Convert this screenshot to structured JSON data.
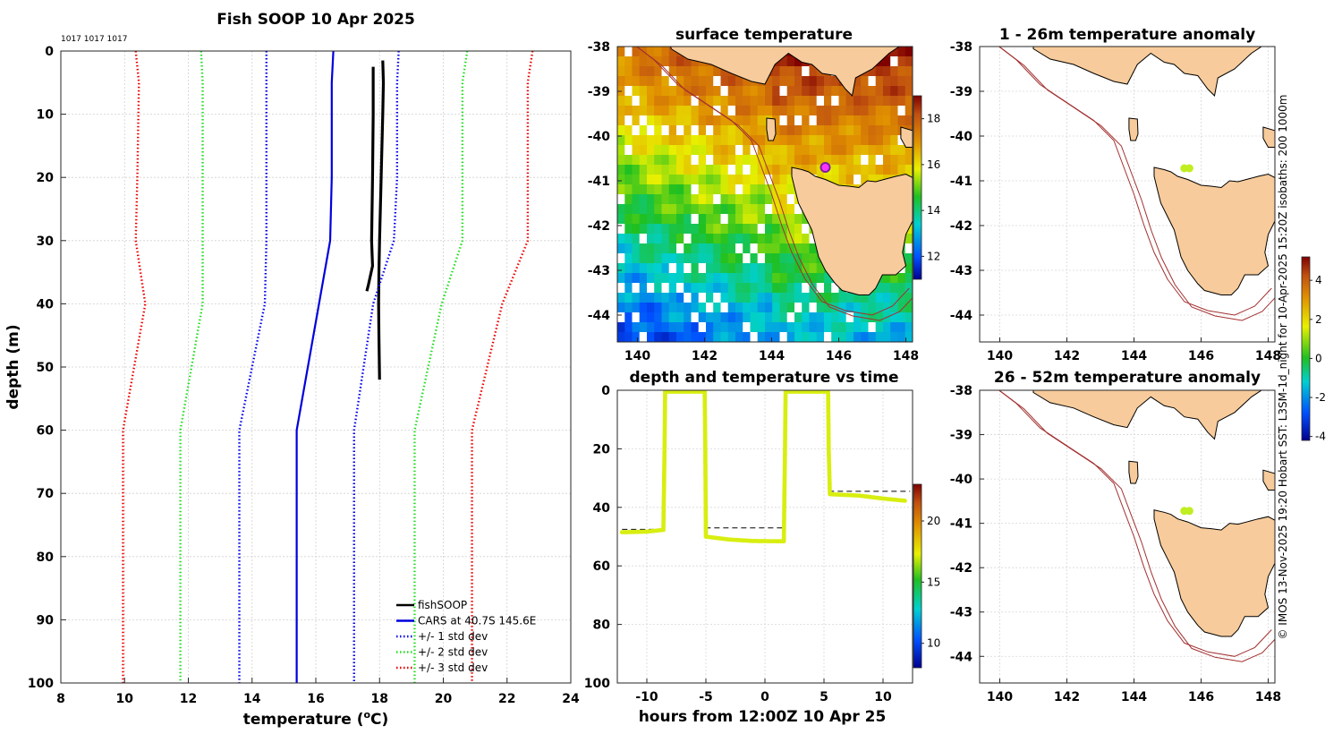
{
  "page": {
    "main_title": "Fish SOOP 10 Apr 2025",
    "ids_label": "1017 1017 1017",
    "copyright": "© IMOS 13-Nov-2025 19:20 Hobart SST: L3SM-1d_night for 10-Apr-2025 15:20Z isobaths: 200  1000m"
  },
  "colors": {
    "fish": "#000000",
    "cars": "#0000dd",
    "sd1": "#0000ee",
    "sd2": "#22dd22",
    "sd3": "#ee0000",
    "land": "#f7cb9b",
    "isobath": "#a33030"
  },
  "chart_data": [
    {
      "id": "profile",
      "type": "line",
      "title": "Fish SOOP 10 Apr 2025",
      "xlabel": "temperature (",
      "xlabel_sup": "o",
      "xlabel_end": "C)",
      "ylabel": "depth (m)",
      "xlim": [
        8,
        24
      ],
      "ylim": [
        0,
        100
      ],
      "xticks": [
        "8",
        "10",
        "12",
        "14",
        "16",
        "18",
        "20",
        "22",
        "24"
      ],
      "yticks": [
        "0",
        "10",
        "20",
        "30",
        "40",
        "50",
        "60",
        "70",
        "80",
        "90",
        "100"
      ],
      "depths": [
        0,
        5,
        20,
        30,
        40,
        60,
        100
      ],
      "series": [
        {
          "name": "fishSOOP",
          "style": "solid",
          "depth": [
            1.5,
            5,
            10,
            20,
            30,
            35,
            40,
            45,
            52
          ],
          "temp": [
            18.1,
            18.12,
            18.1,
            18.05,
            18.0,
            17.98,
            17.97,
            17.98,
            18.0
          ]
        },
        {
          "name": "fishSOOP",
          "style": "solid",
          "depth": [
            2.5,
            10,
            20,
            30,
            34,
            37,
            38
          ],
          "temp": [
            17.8,
            17.8,
            17.78,
            17.75,
            17.78,
            17.65,
            17.6
          ]
        },
        {
          "name": "CARS at 40.7S 145.6E",
          "style": "solid",
          "values": [
            16.55,
            16.5,
            16.5,
            16.45,
            16.1,
            15.4,
            15.4
          ]
        },
        {
          "name": "+/- 1 std dev",
          "style": "dotted",
          "color_key": "sd1",
          "values": [
            14.45,
            14.45,
            14.45,
            14.45,
            14.4,
            13.6,
            13.6
          ]
        },
        {
          "name": "+/- 1 std dev",
          "style": "dotted",
          "color_key": "sd1",
          "values": [
            18.6,
            18.55,
            18.55,
            18.45,
            17.8,
            17.2,
            17.2
          ]
        },
        {
          "name": "+/- 2 std dev",
          "style": "dotted",
          "color_key": "sd2",
          "values": [
            12.4,
            12.45,
            12.45,
            12.45,
            12.45,
            11.75,
            11.75
          ]
        },
        {
          "name": "+/- 2 std dev",
          "style": "dotted",
          "color_key": "sd2",
          "values": [
            20.75,
            20.6,
            20.6,
            20.6,
            19.95,
            19.1,
            19.1
          ]
        },
        {
          "name": "+/- 3 std dev",
          "style": "dotted",
          "color_key": "sd3",
          "values": [
            10.35,
            10.45,
            10.4,
            10.35,
            10.65,
            9.95,
            9.95
          ]
        },
        {
          "name": "+/- 3 std dev",
          "style": "dotted",
          "color_key": "sd3",
          "values": [
            22.8,
            22.65,
            22.65,
            22.65,
            21.85,
            20.9,
            20.9
          ]
        }
      ],
      "legend": [
        "fishSOOP",
        "CARS at 40.7S 145.6E",
        "+/- 1 std dev",
        "+/- 2 std dev",
        "+/- 3 std dev"
      ],
      "legend_position": "bottom-right"
    },
    {
      "id": "sst_map",
      "type": "heatmap",
      "title": "surface temperature",
      "xlim": [
        139.4,
        148.2
      ],
      "ylim": [
        -44.6,
        -38
      ],
      "xticks": [
        "140",
        "142",
        "144",
        "146",
        "148"
      ],
      "yticks": [
        "-38",
        "-39",
        "-40",
        "-41",
        "-42",
        "-43",
        "-44"
      ],
      "colorbar_range": [
        11,
        19
      ],
      "colorbar_ticks": [
        "12",
        "14",
        "16",
        "18"
      ],
      "marker": {
        "lon": 145.6,
        "lat": -40.7
      }
    },
    {
      "id": "depth_time",
      "type": "scatter",
      "title": "depth and temperature vs time",
      "xlabel": "hours from 12:00Z 10 Apr 25",
      "xlim": [
        -12.5,
        12.5
      ],
      "ylim": [
        0,
        100
      ],
      "xticks": [
        "-10",
        "-5",
        "0",
        "5",
        "10"
      ],
      "yticks": [
        "0",
        "20",
        "40",
        "60",
        "80",
        "100"
      ],
      "track": {
        "hours": [
          -12.1,
          -10.0,
          -8.6,
          -8.5,
          -8.45,
          -5.1,
          -5.05,
          -5.0,
          -3.0,
          -1.0,
          1.6,
          1.7,
          1.75,
          5.35,
          5.4,
          5.5,
          8.0,
          10.0,
          12.0
        ],
        "depth": [
          48.5,
          48.3,
          47.7,
          20,
          0.5,
          0.5,
          20,
          50,
          51,
          51.5,
          51.6,
          20,
          0.5,
          0.5,
          20,
          35.5,
          36.0,
          37.0,
          37.8
        ]
      },
      "dashed_lines": [
        {
          "x": [
            -12.1,
            -8.45
          ],
          "depth": 47.5
        },
        {
          "x": [
            -5.05,
            1.6
          ],
          "depth": 47.0
        },
        {
          "x": [
            5.4,
            12.3
          ],
          "depth": 34.5
        }
      ],
      "colorbar_range": [
        8,
        23
      ],
      "colorbar_ticks": [
        "10",
        "15",
        "20"
      ]
    },
    {
      "id": "anom_upper",
      "type": "heatmap",
      "title": "1 - 26m temperature anomaly",
      "xlim": [
        139.4,
        148.2
      ],
      "ylim": [
        -44.6,
        -38
      ],
      "xticks": [
        "140",
        "142",
        "144",
        "146",
        "148"
      ],
      "yticks": [
        "-38",
        "-39",
        "-40",
        "-41",
        "-42",
        "-43",
        "-44"
      ],
      "marker": {
        "lon": 145.6,
        "lat": -40.72
      }
    },
    {
      "id": "anom_lower",
      "type": "heatmap",
      "title": "26 - 52m temperature anomaly",
      "xlim": [
        139.4,
        148.2
      ],
      "ylim": [
        -44.6,
        -38
      ],
      "xticks": [
        "140",
        "142",
        "144",
        "146",
        "148"
      ],
      "yticks": [
        "-38",
        "-39",
        "-40",
        "-41",
        "-42",
        "-43",
        "-44"
      ],
      "marker": {
        "lon": 145.6,
        "lat": -40.72
      }
    },
    {
      "id": "anom_colorbar",
      "type": "heatmap",
      "colorbar_range": [
        -4.2,
        5.2
      ],
      "colorbar_ticks": [
        "4",
        "2",
        "0",
        "-2",
        "-4"
      ]
    }
  ]
}
